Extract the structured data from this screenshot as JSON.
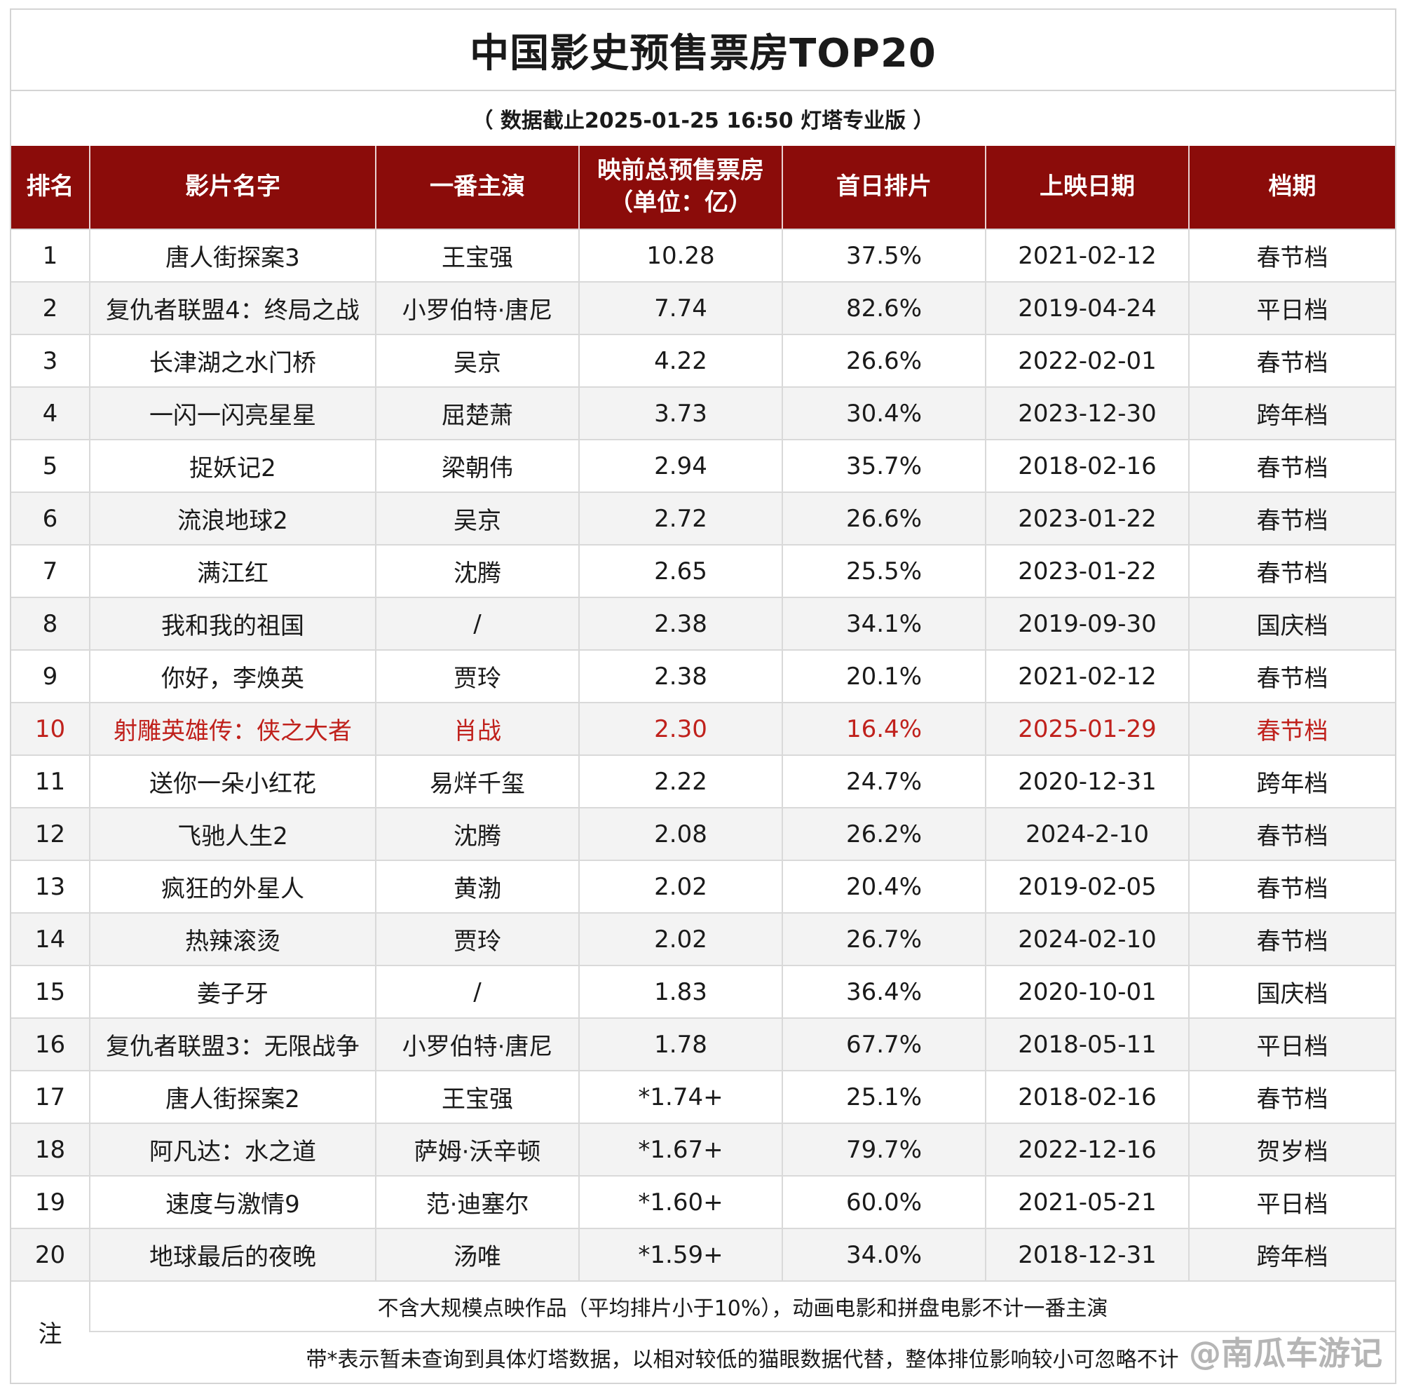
{
  "title": "中国影史预售票房TOP20",
  "subtitle": "（ 数据截止2025-01-25 16:50 灯塔专业版 ）",
  "headers": {
    "rank": "排名",
    "name": "影片名字",
    "lead": "一番主演",
    "presale_line1": "映前总预售票房",
    "presale_line2": "（单位：亿）",
    "share": "首日排片",
    "date": "上映日期",
    "season": "档期"
  },
  "colors": {
    "header_bg": "#8b0c0a",
    "highlight_text": "#c0211c"
  },
  "chart_data": {
    "type": "table",
    "title": "中国影史预售票房TOP20",
    "columns": [
      "排名",
      "影片名字",
      "一番主演",
      "映前总预售票房（单位：亿）",
      "首日排片",
      "上映日期",
      "档期"
    ],
    "rows": [
      {
        "rank": "1",
        "name": "唐人街探案3",
        "lead": "王宝强",
        "presale": "10.28",
        "share": "37.5%",
        "date": "2021-02-12",
        "season": "春节档"
      },
      {
        "rank": "2",
        "name": "复仇者联盟4：终局之战",
        "lead": "小罗伯特·唐尼",
        "presale": "7.74",
        "share": "82.6%",
        "date": "2019-04-24",
        "season": "平日档"
      },
      {
        "rank": "3",
        "name": "长津湖之水门桥",
        "lead": "吴京",
        "presale": "4.22",
        "share": "26.6%",
        "date": "2022-02-01",
        "season": "春节档"
      },
      {
        "rank": "4",
        "name": "一闪一闪亮星星",
        "lead": "屈楚萧",
        "presale": "3.73",
        "share": "30.4%",
        "date": "2023-12-30",
        "season": "跨年档"
      },
      {
        "rank": "5",
        "name": "捉妖记2",
        "lead": "梁朝伟",
        "presale": "2.94",
        "share": "35.7%",
        "date": "2018-02-16",
        "season": "春节档"
      },
      {
        "rank": "6",
        "name": "流浪地球2",
        "lead": "吴京",
        "presale": "2.72",
        "share": "26.6%",
        "date": "2023-01-22",
        "season": "春节档"
      },
      {
        "rank": "7",
        "name": "满江红",
        "lead": "沈腾",
        "presale": "2.65",
        "share": "25.5%",
        "date": "2023-01-22",
        "season": "春节档"
      },
      {
        "rank": "8",
        "name": "我和我的祖国",
        "lead": "/",
        "presale": "2.38",
        "share": "34.1%",
        "date": "2019-09-30",
        "season": "国庆档"
      },
      {
        "rank": "9",
        "name": "你好，李焕英",
        "lead": "贾玲",
        "presale": "2.38",
        "share": "20.1%",
        "date": "2021-02-12",
        "season": "春节档"
      },
      {
        "rank": "10",
        "name": "射雕英雄传：侠之大者",
        "lead": "肖战",
        "presale": "2.30",
        "share": "16.4%",
        "date": "2025-01-29",
        "season": "春节档",
        "highlight": true
      },
      {
        "rank": "11",
        "name": "送你一朵小红花",
        "lead": "易烊千玺",
        "presale": "2.22",
        "share": "24.7%",
        "date": "2020-12-31",
        "season": "跨年档"
      },
      {
        "rank": "12",
        "name": "飞驰人生2",
        "lead": "沈腾",
        "presale": "2.08",
        "share": "26.2%",
        "date": "2024-2-10",
        "season": "春节档"
      },
      {
        "rank": "13",
        "name": "疯狂的外星人",
        "lead": "黄渤",
        "presale": "2.02",
        "share": "20.4%",
        "date": "2019-02-05",
        "season": "春节档"
      },
      {
        "rank": "14",
        "name": "热辣滚烫",
        "lead": "贾玲",
        "presale": "2.02",
        "share": "26.7%",
        "date": "2024-02-10",
        "season": "春节档"
      },
      {
        "rank": "15",
        "name": "姜子牙",
        "lead": "/",
        "presale": "1.83",
        "share": "36.4%",
        "date": "2020-10-01",
        "season": "国庆档"
      },
      {
        "rank": "16",
        "name": "复仇者联盟3：无限战争",
        "lead": "小罗伯特·唐尼",
        "presale": "1.78",
        "share": "67.7%",
        "date": "2018-05-11",
        "season": "平日档"
      },
      {
        "rank": "17",
        "name": "唐人街探案2",
        "lead": "王宝强",
        "presale": "*1.74+",
        "share": "25.1%",
        "date": "2018-02-16",
        "season": "春节档"
      },
      {
        "rank": "18",
        "name": "阿凡达：水之道",
        "lead": "萨姆·沃辛顿",
        "presale": "*1.67+",
        "share": "79.7%",
        "date": "2022-12-16",
        "season": "贺岁档"
      },
      {
        "rank": "19",
        "name": "速度与激情9",
        "lead": "范·迪塞尔",
        "presale": "*1.60+",
        "share": "60.0%",
        "date": "2021-05-21",
        "season": "平日档"
      },
      {
        "rank": "20",
        "name": "地球最后的夜晚",
        "lead": "汤唯",
        "presale": "*1.59+",
        "share": "34.0%",
        "date": "2018-12-31",
        "season": "跨年档"
      }
    ]
  },
  "notes": {
    "label": "注",
    "line1": "不含大规模点映作品（平均排片小于10%），动画电影和拼盘电影不计一番主演",
    "line2": "带*表示暂未查询到具体灯塔数据，以相对较低的猫眼数据代替，整体排位影响较小可忽略不计"
  },
  "watermark": "@南瓜车游记"
}
